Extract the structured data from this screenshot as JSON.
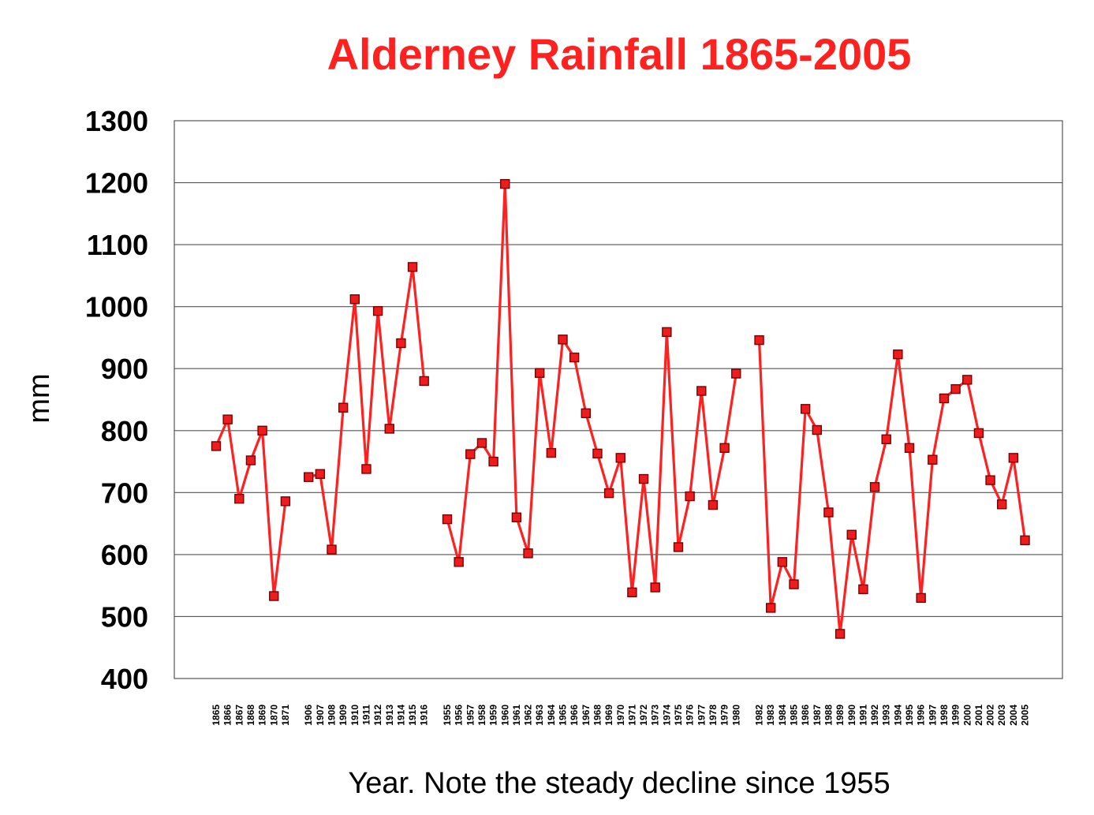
{
  "chart_data": {
    "type": "line",
    "title": "Alderney Rainfall 1865-2005",
    "xlabel": "Year. Note the steady decline since 1955",
    "ylabel": "mm",
    "ylim": [
      400,
      1300
    ],
    "yticks": [
      400,
      500,
      600,
      700,
      800,
      900,
      1000,
      1100,
      1200,
      1300
    ],
    "grid": true,
    "colors": {
      "series": "#ff2020",
      "title": "#ff2020",
      "axis": "#000000",
      "grid": "#444444"
    },
    "segments": [
      {
        "years": [
          "1865",
          "1866",
          "1867",
          "1868",
          "1869",
          "1870",
          "1871"
        ],
        "values": [
          775,
          818,
          690,
          752,
          800,
          533,
          686
        ]
      },
      {
        "years": [
          "1906",
          "1907",
          "1908",
          "1909",
          "1910",
          "1911",
          "1912",
          "1913",
          "1914",
          "1915",
          "1916"
        ],
        "values": [
          725,
          730,
          608,
          837,
          1012,
          738,
          993,
          803,
          941,
          1064,
          880
        ]
      },
      {
        "years": [
          "1955",
          "1956",
          "1957",
          "1958",
          "1959",
          "1960",
          "1961",
          "1962",
          "1963",
          "1964",
          "1965",
          "1966",
          "1967",
          "1968",
          "1969",
          "1970",
          "1971",
          "1972",
          "1973",
          "1974",
          "1975",
          "1976",
          "1977",
          "1978",
          "1979",
          "1980"
        ],
        "values": [
          657,
          588,
          762,
          780,
          750,
          1198,
          660,
          602,
          893,
          764,
          947,
          918,
          828,
          763,
          699,
          756,
          539,
          722,
          547,
          959,
          612,
          694,
          864,
          680,
          772,
          892
        ]
      },
      {
        "years": [
          "1982",
          "1983",
          "1984",
          "1985",
          "1986",
          "1987",
          "1988",
          "1989",
          "1990",
          "1991",
          "1992",
          "1993",
          "1994",
          "1995",
          "1996",
          "1997",
          "1998",
          "1999",
          "2000",
          "2001",
          "2002",
          "2003",
          "2004",
          "2005"
        ],
        "values": [
          946,
          514,
          588,
          552,
          835,
          801,
          668,
          472,
          632,
          544,
          709,
          786,
          923,
          772,
          530,
          753,
          852,
          867,
          882,
          796,
          720,
          681,
          756,
          623
        ]
      }
    ]
  }
}
